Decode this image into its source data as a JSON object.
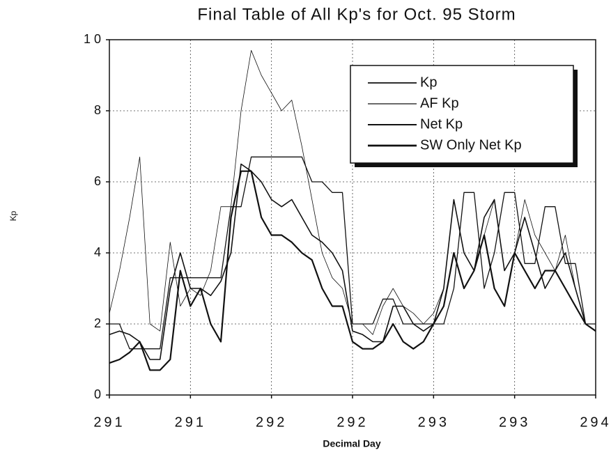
{
  "chart_data": {
    "type": "line",
    "title": "Final Table of All Kp's for Oct. 95 Storm",
    "xlabel": "Decimal Day",
    "ylabel": "Kp",
    "x": [
      291,
      291.0625,
      291.125,
      291.1875,
      291.25,
      291.3125,
      291.375,
      291.4375,
      291.5,
      291.5625,
      291.625,
      291.6875,
      291.75,
      291.8125,
      291.875,
      291.9375,
      292,
      292.0625,
      292.125,
      292.1875,
      292.25,
      292.3125,
      292.375,
      292.4375,
      292.5,
      292.5625,
      292.625,
      292.6875,
      292.75,
      292.8125,
      292.875,
      292.9375,
      293,
      293.0625,
      293.125,
      293.1875,
      293.25,
      293.3125,
      293.375,
      293.4375,
      293.5,
      293.5625,
      293.625,
      293.6875,
      293.75,
      293.8125,
      293.875,
      293.9375,
      294
    ],
    "series": [
      {
        "name": "Kp",
        "color": "#111111",
        "line_width": 1.3,
        "values": [
          2,
          2,
          1.3,
          1.3,
          1.3,
          1.3,
          3.3,
          3.3,
          3.3,
          3.3,
          3.3,
          3.3,
          5.3,
          5.3,
          6.7,
          6.7,
          6.7,
          6.7,
          6.7,
          6.7,
          6,
          6,
          5.7,
          5.7,
          2,
          2,
          2,
          2.7,
          2.7,
          2,
          2,
          2,
          2,
          2,
          3,
          5.7,
          5.7,
          3,
          4,
          5.7,
          5.7,
          3.7,
          3.7,
          5.3,
          5.3,
          3.7,
          3.7,
          2,
          2
        ]
      },
      {
        "name": "AF Kp",
        "color": "#111111",
        "line_width": 0.8,
        "values": [
          2.3,
          3.5,
          5,
          6.7,
          2,
          1.8,
          4.3,
          2.5,
          3,
          2.8,
          3.5,
          5.3,
          5.3,
          8,
          9.7,
          9,
          8.5,
          8,
          8.3,
          7,
          5.5,
          4,
          3.3,
          3,
          2,
          2,
          1.7,
          2.5,
          3,
          2.5,
          2.3,
          2,
          2.3,
          3,
          5.5,
          4,
          3.5,
          4.5,
          5.5,
          3.5,
          4,
          5.5,
          4.5,
          4,
          3.5,
          4.5,
          3,
          2,
          2
        ]
      },
      {
        "name": "Net Kp",
        "color": "#111111",
        "line_width": 1.6,
        "values": [
          1.7,
          1.8,
          1.7,
          1.5,
          1,
          1,
          3,
          4,
          3,
          3,
          2.8,
          3.2,
          4,
          6.5,
          6.3,
          6,
          5.5,
          5.3,
          5.5,
          5,
          4.5,
          4.3,
          4,
          3.5,
          1.8,
          1.7,
          1.5,
          1.5,
          2.5,
          2.5,
          2,
          1.8,
          2,
          3,
          5.5,
          4,
          3.5,
          5,
          5.5,
          3.5,
          4,
          5,
          4,
          3,
          3.5,
          4,
          3,
          2,
          1.8
        ]
      },
      {
        "name": "SW Only Net Kp",
        "color": "#111111",
        "line_width": 2.2,
        "values": [
          0.9,
          1,
          1.2,
          1.5,
          0.7,
          0.7,
          1,
          3.5,
          2.5,
          3,
          2,
          1.5,
          5,
          6.3,
          6.3,
          5,
          4.5,
          4.5,
          4.3,
          4,
          3.8,
          3,
          2.5,
          2.5,
          1.5,
          1.3,
          1.3,
          1.5,
          2,
          1.5,
          1.3,
          1.5,
          2,
          2.5,
          4,
          3,
          3.5,
          4.5,
          3,
          2.5,
          4,
          3.5,
          3,
          3.5,
          3.5,
          3,
          2.5,
          2,
          1.8
        ]
      }
    ],
    "xlim": [
      291,
      294
    ],
    "xticks": [
      291,
      {
        "value": 291.5,
        "label": "291"
      },
      292,
      {
        "value": 292.5,
        "label": "292"
      },
      293,
      {
        "value": 293.5,
        "label": "293"
      },
      294
    ],
    "ylim": [
      0,
      10
    ],
    "yticks": [
      0,
      2,
      4,
      6,
      8,
      {
        "value": 10,
        "label": "1 0"
      }
    ],
    "grid": true,
    "legend": "upper right"
  }
}
